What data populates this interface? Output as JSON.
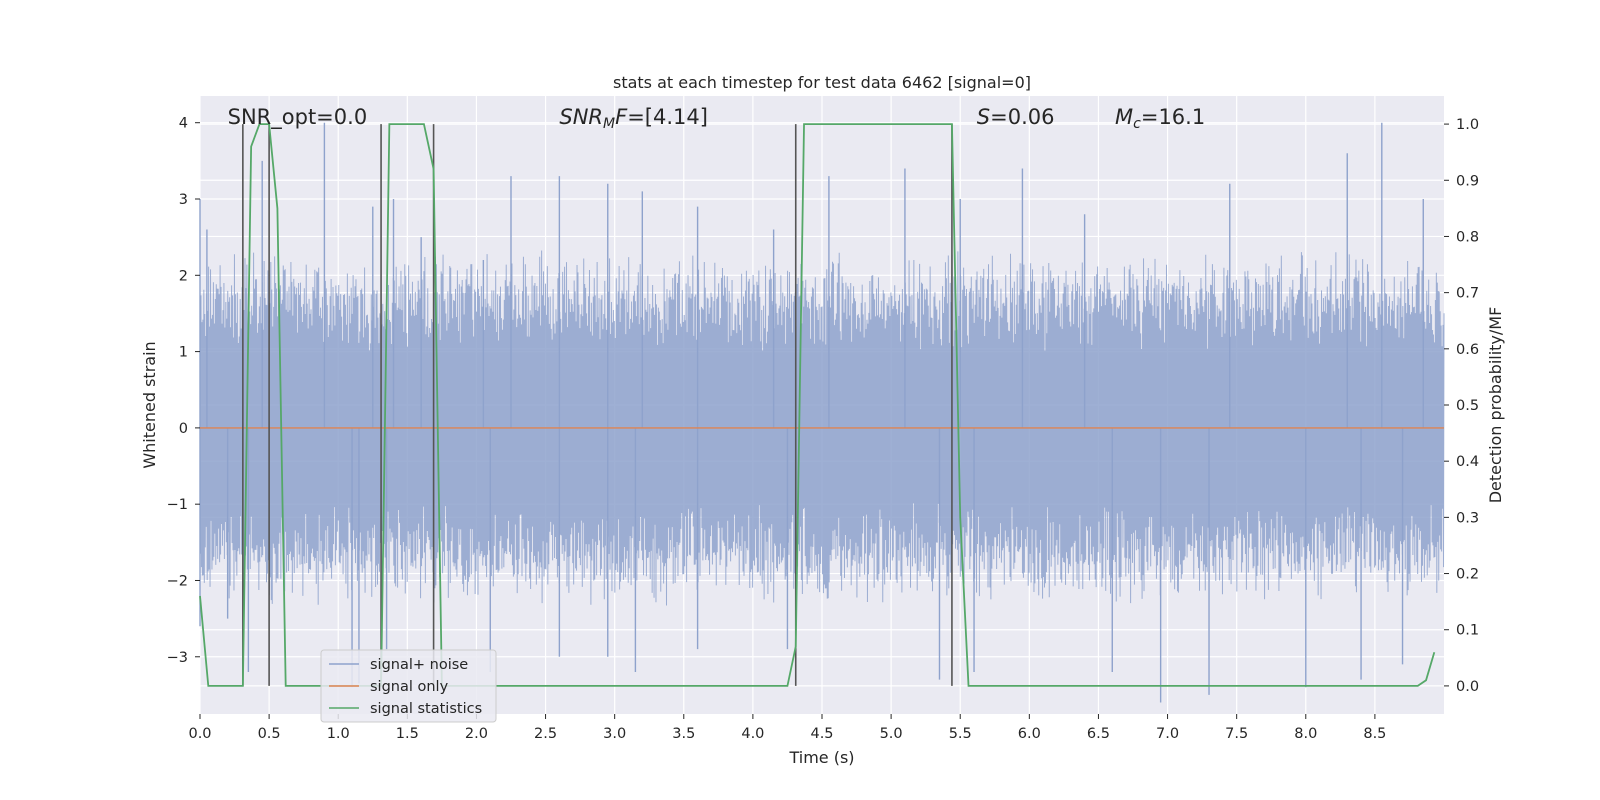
{
  "chart_data": {
    "type": "line",
    "title": "stats at each timestep for test data 6462 [signal=0]",
    "xlabel": "Time (s)",
    "ylabel": "Whitened strain",
    "ylabel_right": "Detection probability/MF",
    "xlim": [
      0.0,
      9.0
    ],
    "ylim": [
      -3.75,
      4.35
    ],
    "ylim_right": [
      -0.05,
      1.05
    ],
    "x_ticks": [
      "0.0",
      "0.5",
      "1.0",
      "1.5",
      "2.0",
      "2.5",
      "3.0",
      "3.5",
      "4.0",
      "4.5",
      "5.0",
      "5.5",
      "6.0",
      "6.5",
      "7.0",
      "7.5",
      "8.0",
      "8.5"
    ],
    "x_tick_values": [
      0.0,
      0.5,
      1.0,
      1.5,
      2.0,
      2.5,
      3.0,
      3.5,
      4.0,
      4.5,
      5.0,
      5.5,
      6.0,
      6.5,
      7.0,
      7.5,
      8.0,
      8.5
    ],
    "y_ticks": [
      "−3",
      "−2",
      "−1",
      "0",
      "1",
      "2",
      "3",
      "4"
    ],
    "y_tick_values": [
      -3,
      -2,
      -1,
      0,
      1,
      2,
      3,
      4
    ],
    "y_ticks_right": [
      "0.0",
      "0.1",
      "0.2",
      "0.3",
      "0.4",
      "0.5",
      "0.6",
      "0.7",
      "0.8",
      "0.9",
      "1.0"
    ],
    "y_tick_values_right": [
      0.0,
      0.1,
      0.2,
      0.3,
      0.4,
      0.5,
      0.6,
      0.7,
      0.8,
      0.9,
      1.0
    ],
    "grid": true,
    "legend_position": "lower-left",
    "annotations": [
      {
        "text": "SNR_opt=0.0",
        "x": 0.2
      },
      {
        "text": "SNR_MF=[4.14]",
        "x": 2.6
      },
      {
        "text": "S=0.06",
        "x": 5.62
      },
      {
        "text": "M_c=16.1",
        "x": 6.62
      }
    ],
    "vertical_lines": [
      0.31,
      0.5,
      1.31,
      1.69,
      4.31,
      5.44
    ],
    "series": [
      {
        "name": "signal+ noise",
        "color": "#8ea2cc",
        "axis": "left",
        "kind": "noise-band",
        "typical_abs": 1.7,
        "peaks_pos": [
          [
            0.0,
            3.0
          ],
          [
            0.05,
            2.6
          ],
          [
            0.45,
            3.5
          ],
          [
            0.9,
            4.0
          ],
          [
            1.25,
            2.9
          ],
          [
            1.4,
            3.0
          ],
          [
            1.6,
            2.5
          ],
          [
            2.05,
            2.2
          ],
          [
            2.25,
            3.3
          ],
          [
            2.6,
            3.3
          ],
          [
            2.95,
            3.2
          ],
          [
            3.2,
            3.1
          ],
          [
            3.6,
            2.9
          ],
          [
            4.15,
            2.6
          ],
          [
            4.55,
            3.3
          ],
          [
            5.1,
            3.4
          ],
          [
            5.5,
            3.0
          ],
          [
            5.95,
            3.4
          ],
          [
            6.4,
            2.8
          ],
          [
            7.45,
            3.2
          ],
          [
            8.3,
            3.6
          ],
          [
            8.55,
            4.0
          ],
          [
            8.85,
            3.0
          ]
        ],
        "peaks_neg": [
          [
            0.0,
            -2.6
          ],
          [
            0.2,
            -2.5
          ],
          [
            0.35,
            -3.2
          ],
          [
            1.1,
            -3.4
          ],
          [
            1.15,
            -3.35
          ],
          [
            1.35,
            -2.9
          ],
          [
            2.1,
            -3.2
          ],
          [
            2.6,
            -3.0
          ],
          [
            2.95,
            -3.0
          ],
          [
            3.15,
            -3.2
          ],
          [
            3.6,
            -2.9
          ],
          [
            4.25,
            -2.9
          ],
          [
            5.35,
            -3.3
          ],
          [
            5.6,
            -3.2
          ],
          [
            6.6,
            -3.2
          ],
          [
            6.95,
            -3.6
          ],
          [
            7.3,
            -3.5
          ],
          [
            8.0,
            -3.4
          ],
          [
            8.4,
            -3.3
          ],
          [
            8.7,
            -3.1
          ]
        ]
      },
      {
        "name": "signal only",
        "color": "#dd8452",
        "axis": "left",
        "x": [
          0.0,
          9.0
        ],
        "values": [
          0.0,
          0.0
        ]
      },
      {
        "name": "signal statistics",
        "color": "#55a868",
        "axis": "right",
        "x": [
          0.0,
          0.06,
          0.13,
          0.31,
          0.37,
          0.43,
          0.5,
          0.56,
          0.62,
          0.68,
          1.31,
          1.37,
          1.43,
          1.62,
          1.69,
          1.75,
          2.8,
          4.25,
          4.31,
          4.37,
          4.43,
          5.44,
          5.5,
          5.56,
          5.62,
          8.81,
          8.87,
          8.93
        ],
        "values": [
          0.16,
          0.0,
          0.0,
          0.0,
          0.96,
          1.0,
          1.0,
          0.85,
          0.0,
          0.0,
          0.0,
          1.0,
          1.0,
          1.0,
          0.92,
          0.0,
          0.0,
          0.0,
          0.07,
          1.0,
          1.0,
          1.0,
          0.3,
          0.0,
          0.0,
          0.0,
          0.01,
          0.06
        ]
      }
    ]
  }
}
